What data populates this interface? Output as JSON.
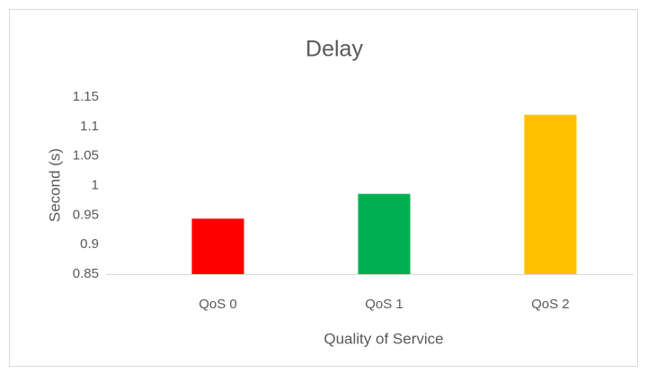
{
  "chart_data": {
    "type": "bar",
    "title": "Delay",
    "x_label": "Quality of Service",
    "y_label": "Second (s)",
    "categories": [
      "QoS 0",
      "QoS 1",
      "QoS 2"
    ],
    "values": [
      0.944,
      0.986,
      1.12
    ],
    "colors": [
      "#ff0000",
      "#00b050",
      "#ffc000"
    ],
    "ylim": [
      0.85,
      1.15
    ],
    "yticks": [
      0.85,
      0.9,
      0.95,
      1,
      1.05,
      1.1,
      1.15
    ],
    "grid": false
  }
}
